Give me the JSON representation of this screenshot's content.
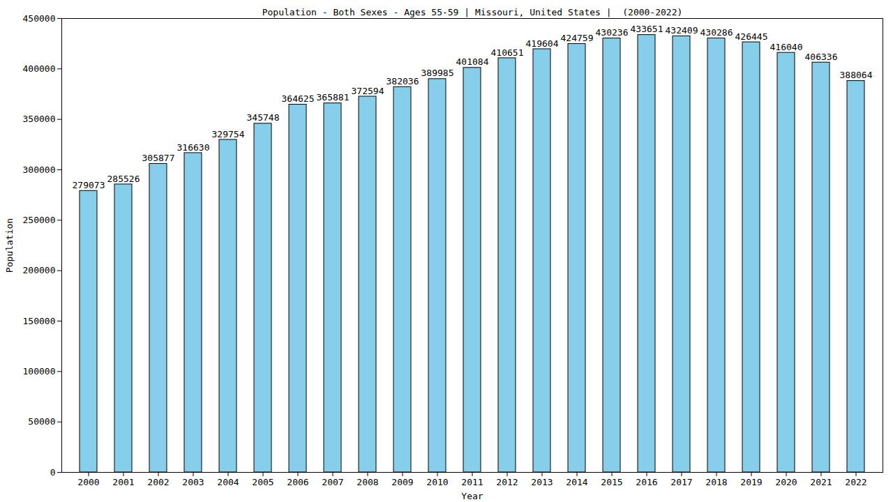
{
  "chart_data": {
    "type": "bar",
    "title": "Population - Both Sexes - Ages 55-59 | Missouri, United States |  (2000-2022)",
    "x_label": "Year",
    "y_label": "Population",
    "categories": [
      "2000",
      "2001",
      "2002",
      "2003",
      "2004",
      "2005",
      "2006",
      "2007",
      "2008",
      "2009",
      "2010",
      "2011",
      "2012",
      "2013",
      "2014",
      "2015",
      "2016",
      "2017",
      "2018",
      "2019",
      "2020",
      "2021",
      "2022"
    ],
    "values": [
      279073,
      285526,
      305877,
      316630,
      329754,
      345748,
      364625,
      365881,
      372594,
      382036,
      389985,
      401084,
      410651,
      419604,
      424759,
      430236,
      433651,
      432409,
      430286,
      426445,
      416040,
      406336,
      388064
    ],
    "color": "#87ceeb",
    "ylim": [
      0,
      450000
    ],
    "yticks": [
      0,
      50000,
      100000,
      150000,
      200000,
      250000,
      300000,
      350000,
      400000,
      450000
    ],
    "grid": false,
    "data_labels": true
  }
}
